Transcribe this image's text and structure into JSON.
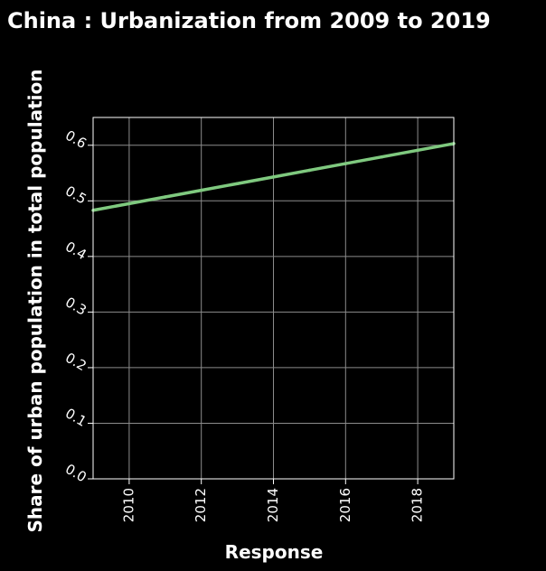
{
  "chart_data": {
    "type": "line",
    "title": "China : Urbanization from 2009 to 2019",
    "xlabel": "Response",
    "ylabel": "Share of urban population in total population",
    "xlim": [
      2009,
      2019
    ],
    "ylim": [
      0,
      0.65
    ],
    "xticks": [
      2010,
      2012,
      2014,
      2016,
      2018
    ],
    "xtick_labels": [
      "2010",
      "2012",
      "2014",
      "2016",
      "2018"
    ],
    "yticks": [
      0,
      0.1,
      0.2,
      0.3,
      0.4,
      0.5,
      0.6
    ],
    "ytick_labels": [
      "0.0",
      "0.1",
      "0.2",
      "0.3",
      "0.4",
      "0.5",
      "0.6"
    ],
    "grid": true,
    "series": [
      {
        "color": "#7fc97f",
        "x": [
          2009,
          2010,
          2011,
          2012,
          2013,
          2014,
          2015,
          2016,
          2017,
          2018,
          2019
        ],
        "values": [
          0.483,
          0.495,
          0.507,
          0.519,
          0.531,
          0.543,
          0.555,
          0.567,
          0.579,
          0.591,
          0.603
        ]
      }
    ]
  },
  "colors": {
    "background": "#000000",
    "text": "#ffffff",
    "axis": "#ffffff",
    "grid": "#8c8c8c"
  }
}
